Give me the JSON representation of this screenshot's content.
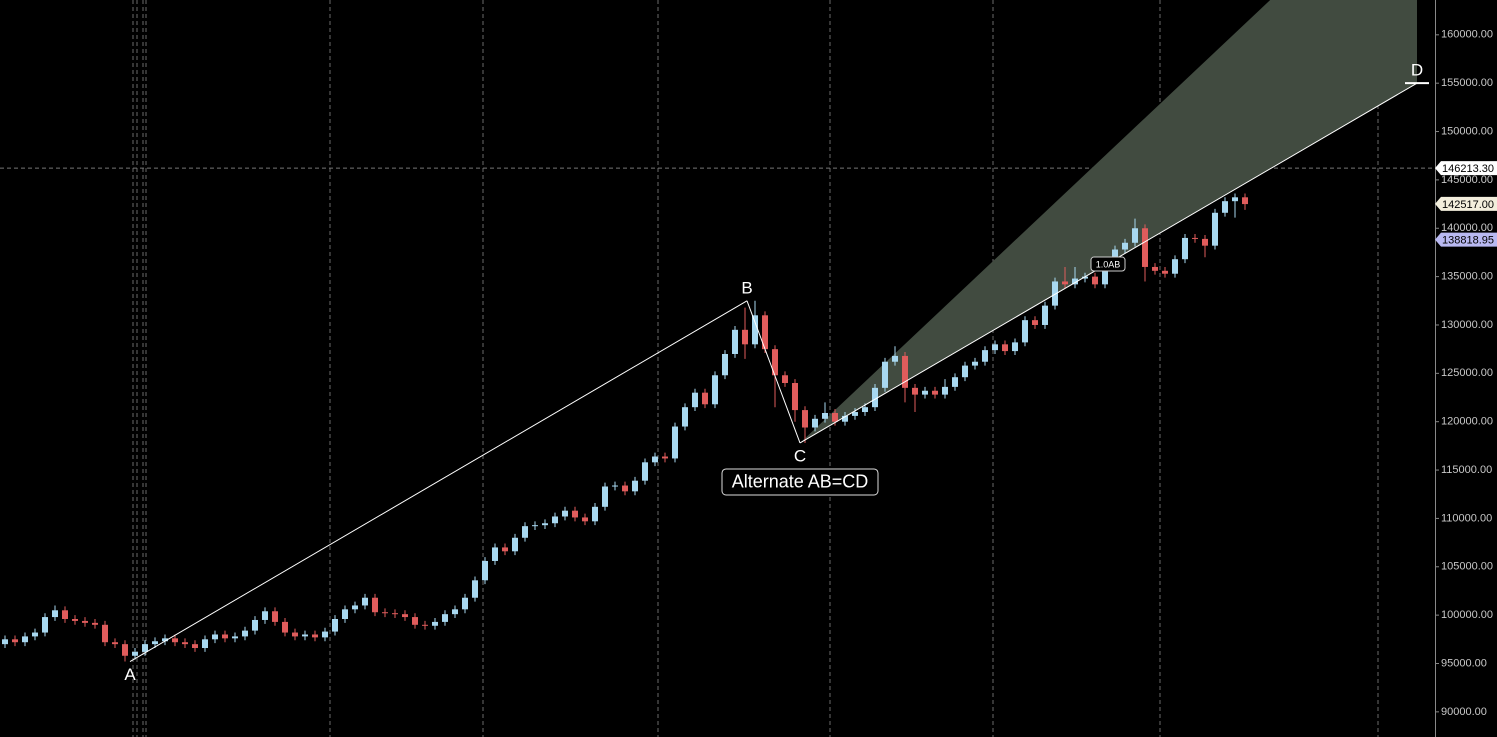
{
  "chart_data": {
    "type": "candlestick",
    "title": "Alternate AB=CD",
    "up_color": "#a8d8f0",
    "down_color": "#e05c5c",
    "open": [
      97000,
      97500,
      97200,
      97800,
      98200,
      99800,
      100500,
      99600,
      99400,
      99200,
      99000,
      97200,
      97000,
      95800,
      96200,
      97000,
      97300,
      97600,
      97200,
      97000,
      96600,
      97500,
      98000,
      97600,
      97800,
      98400,
      99500,
      100400,
      99300,
      98200,
      97800,
      98000,
      97700,
      98300,
      99600,
      100600,
      101000,
      101800,
      100300,
      100200,
      100100,
      99800,
      99000,
      98900,
      99300,
      100100,
      100600,
      101800,
      103600,
      105600,
      107000,
      106600,
      108000,
      109200,
      109300,
      109500,
      110200,
      110800,
      110100,
      109700,
      111200,
      113300,
      113400,
      112800,
      113900,
      115800,
      116400,
      116200,
      119500,
      121500,
      123000,
      121800,
      124800,
      127000,
      129500,
      128000,
      131000,
      127500,
      124800,
      124000,
      121200,
      119400,
      120300,
      120900,
      120000,
      120600,
      121000,
      121500,
      123500,
      126200,
      126800,
      123500,
      122800,
      123200,
      122800,
      123600,
      124600,
      125800,
      126200,
      127400,
      128000,
      127300,
      128200,
      130500,
      130000,
      132000,
      134500,
      134200,
      134800,
      135000,
      134200,
      136000,
      137800,
      138500,
      140000,
      136000,
      135600,
      135300,
      136800,
      139000,
      138900,
      138200,
      141600,
      142800,
      143200
    ],
    "high": [
      97900,
      97900,
      98200,
      98600,
      100200,
      101000,
      100900,
      100000,
      99800,
      99600,
      99400,
      97600,
      97400,
      96600,
      97400,
      97700,
      98000,
      98000,
      97600,
      97400,
      97900,
      98400,
      98400,
      98200,
      98800,
      99900,
      100800,
      100800,
      99700,
      98600,
      98400,
      98400,
      98700,
      100000,
      101000,
      101400,
      102200,
      102200,
      100700,
      100600,
      100500,
      100200,
      99400,
      99700,
      100500,
      101000,
      102200,
      104000,
      106000,
      107400,
      107400,
      108400,
      109600,
      109700,
      109900,
      110600,
      111200,
      111200,
      110500,
      111600,
      113700,
      113800,
      113800,
      114300,
      116200,
      116800,
      116800,
      119900,
      121900,
      123400,
      123400,
      125200,
      127400,
      129900,
      131800,
      132500,
      131400,
      127900,
      125200,
      124400,
      121600,
      120700,
      122000,
      121300,
      121000,
      121400,
      121900,
      123900,
      126600,
      127800,
      127200,
      123900,
      123600,
      123600,
      124400,
      125000,
      126200,
      126600,
      127800,
      128400,
      128400,
      128600,
      130900,
      130900,
      132400,
      134900,
      136000,
      136000,
      135400,
      135400,
      136400,
      138200,
      138900,
      141000,
      140400,
      136400,
      136000,
      137200,
      139400,
      139400,
      139300,
      142000,
      143200,
      143600,
      143600
    ],
    "low": [
      96600,
      96800,
      96800,
      97400,
      97800,
      99400,
      99200,
      99000,
      98800,
      98600,
      96800,
      96600,
      95200,
      95400,
      95800,
      96600,
      96900,
      96800,
      96600,
      96200,
      96200,
      97100,
      97200,
      97200,
      97400,
      98000,
      99100,
      98900,
      97800,
      97400,
      97400,
      97300,
      97300,
      97900,
      99200,
      100200,
      100600,
      99900,
      99800,
      99700,
      99400,
      98600,
      98500,
      98500,
      98900,
      99700,
      100200,
      101400,
      103200,
      105200,
      106200,
      106200,
      107600,
      108800,
      108900,
      109100,
      109800,
      109700,
      109300,
      109300,
      110800,
      112900,
      112400,
      112400,
      113500,
      115400,
      115800,
      115800,
      119100,
      121100,
      121400,
      121400,
      124400,
      126600,
      126500,
      127600,
      127100,
      121500,
      123600,
      120000,
      117800,
      119000,
      119900,
      119600,
      119600,
      120200,
      120600,
      121100,
      123100,
      125800,
      122000,
      121000,
      122400,
      122400,
      122400,
      123200,
      124200,
      125400,
      125800,
      127000,
      126900,
      126900,
      127800,
      129600,
      129600,
      131600,
      133800,
      133800,
      134400,
      133800,
      133800,
      135600,
      137400,
      138100,
      134500,
      135200,
      134900,
      134900,
      136400,
      138500,
      137000,
      137800,
      141200,
      141100,
      141900
    ],
    "close": [
      97500,
      97200,
      97800,
      98200,
      99800,
      100500,
      99600,
      99400,
      99200,
      99000,
      97200,
      97000,
      95800,
      96200,
      97000,
      97300,
      97600,
      97200,
      97000,
      96600,
      97500,
      98000,
      97600,
      97800,
      98400,
      99500,
      100400,
      99300,
      98200,
      97800,
      98000,
      97700,
      98300,
      99600,
      100600,
      101000,
      101800,
      100300,
      100200,
      100100,
      99800,
      99000,
      98900,
      99300,
      100100,
      100600,
      101800,
      103600,
      105600,
      107000,
      106600,
      108000,
      109200,
      109300,
      109500,
      110200,
      110800,
      110100,
      109700,
      111200,
      113300,
      113400,
      112800,
      113900,
      115800,
      116400,
      116200,
      119500,
      121500,
      123000,
      121800,
      124800,
      127000,
      129500,
      128000,
      131000,
      127500,
      124800,
      124000,
      121200,
      119400,
      120300,
      120900,
      120000,
      120600,
      121000,
      121500,
      123500,
      126200,
      126800,
      123500,
      122800,
      123200,
      122800,
      123600,
      124600,
      125800,
      126200,
      127400,
      128000,
      127300,
      128200,
      130500,
      130000,
      132000,
      134500,
      134200,
      134800,
      135000,
      134200,
      136000,
      137800,
      138500,
      140000,
      136000,
      135600,
      135300,
      136800,
      139000,
      138900,
      138200,
      141600,
      142800,
      143200,
      142500
    ],
    "ylim": [
      87400,
      163600
    ],
    "yticks": [
      {
        "value": 90000,
        "label": "90000.00"
      },
      {
        "value": 95000,
        "label": "95000.00"
      },
      {
        "value": 100000,
        "label": "100000.00"
      },
      {
        "value": 105000,
        "label": "105000.00"
      },
      {
        "value": 110000,
        "label": "110000.00"
      },
      {
        "value": 115000,
        "label": "115000.00"
      },
      {
        "value": 120000,
        "label": "120000.00"
      },
      {
        "value": 125000,
        "label": "125000.00"
      },
      {
        "value": 130000,
        "label": "130000.00"
      },
      {
        "value": 135000,
        "label": "135000.00"
      },
      {
        "value": 140000,
        "label": "140000.00"
      },
      {
        "value": 145000,
        "label": "145000.00"
      },
      {
        "value": 150000,
        "label": "150000.00"
      },
      {
        "value": 155000,
        "label": "155000.00"
      },
      {
        "value": 160000,
        "label": "160000.00"
      }
    ],
    "pattern": {
      "color": "#ffffff",
      "zone_color": "#414b40",
      "points": [
        {
          "label": "A",
          "x": 12.5,
          "y": 95200
        },
        {
          "label": "B",
          "x": 74.2,
          "y": 132500
        },
        {
          "label": "C",
          "x": 79.5,
          "y": 117800
        },
        {
          "label": "D",
          "x": 141.2,
          "y": 155000
        }
      ],
      "zone_high": 177900,
      "ratio_label": {
        "label": "1.0AB",
        "x": 110.3,
        "y": 136300
      }
    },
    "crosshair": {
      "label": "146213.30",
      "value": 146213.3
    },
    "price_tags": [
      {
        "label": "142517.00",
        "value": 142517,
        "color": "#f3eedc"
      },
      {
        "label": "138818.95",
        "value": 138818.95,
        "color": "#b9b9f2"
      }
    ]
  }
}
